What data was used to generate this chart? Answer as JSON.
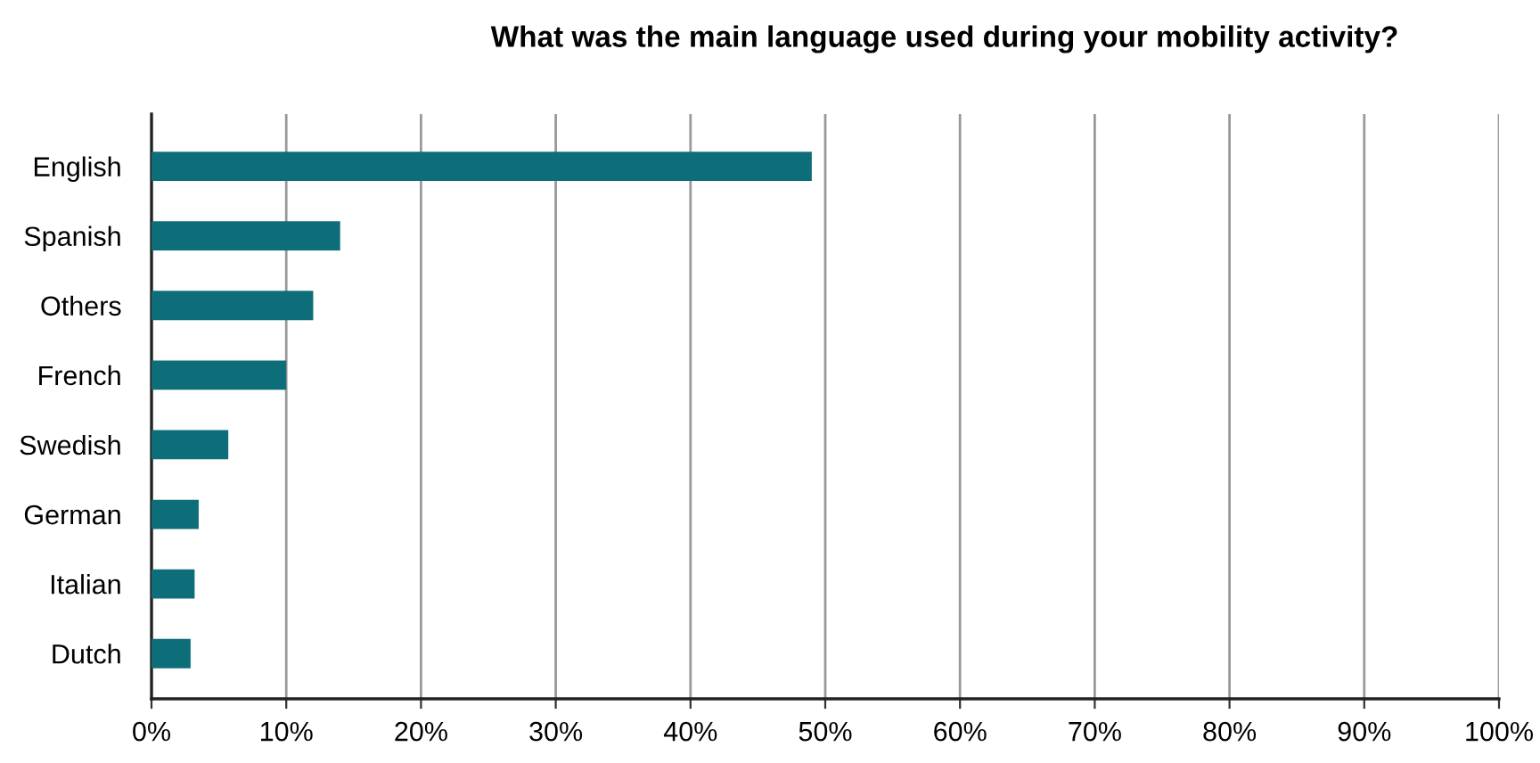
{
  "chart_data": {
    "type": "bar",
    "orientation": "horizontal",
    "title": "What was the main language used during your mobility activity?",
    "categories": [
      "English",
      "Spanish",
      "Others",
      "French",
      "Swedish",
      "German",
      "Italian",
      "Dutch"
    ],
    "values": [
      49,
      14,
      12,
      10,
      5.7,
      3.5,
      3.2,
      2.9
    ],
    "color": "#0d6e7a",
    "xlim": [
      0,
      100
    ],
    "xticks": [
      {
        "value": 0,
        "label": "0%"
      },
      {
        "value": 10,
        "label": "10%"
      },
      {
        "value": 20,
        "label": "20%"
      },
      {
        "value": 30,
        "label": "30%"
      },
      {
        "value": 40,
        "label": "40%"
      },
      {
        "value": 50,
        "label": "50%"
      },
      {
        "value": 60,
        "label": "60%"
      },
      {
        "value": 70,
        "label": "70%"
      },
      {
        "value": 80,
        "label": "80%"
      },
      {
        "value": 90,
        "label": "90%"
      },
      {
        "value": 100,
        "label": "100%"
      }
    ],
    "grid": "x"
  }
}
